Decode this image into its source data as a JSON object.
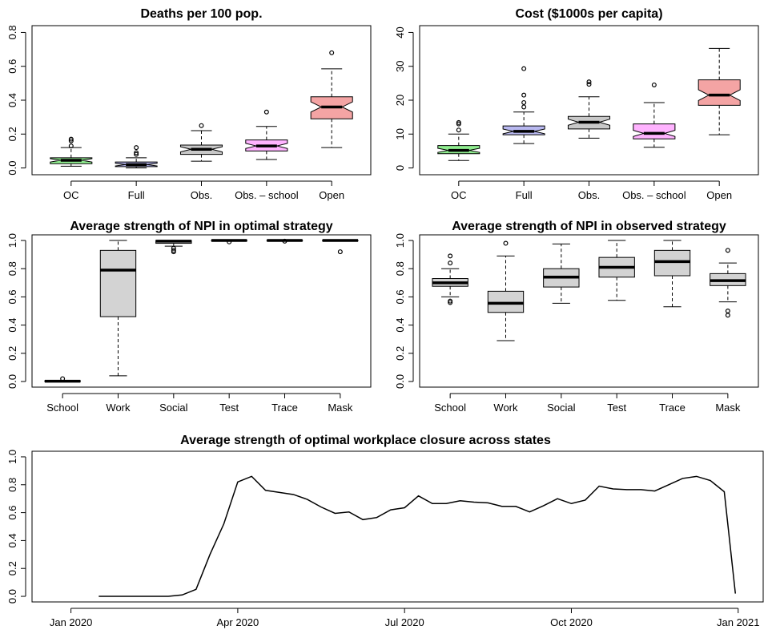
{
  "chart_data": [
    {
      "type": "boxplot",
      "title": "Deaths per 100 pop.",
      "categories": [
        "OC",
        "Full",
        "Obs.",
        "Obs. – school",
        "Open"
      ],
      "ylim": [
        0,
        0.8
      ],
      "yticks": [
        "0.0",
        "0.2",
        "0.4",
        "0.6",
        "0.8"
      ],
      "notched": true,
      "series": [
        {
          "name": "OC",
          "color": "#90ee90",
          "min": 0.01,
          "q1": 0.025,
          "median": 0.045,
          "q3": 0.06,
          "max": 0.12,
          "notch": 0.01,
          "outliers": [
            0.13,
            0.16,
            0.17
          ]
        },
        {
          "name": "Full",
          "color": "#b8b8f0",
          "min": 0.0,
          "q1": 0.008,
          "median": 0.02,
          "q3": 0.035,
          "max": 0.06,
          "notch": 0.008,
          "outliers": [
            0.08,
            0.09,
            0.12
          ]
        },
        {
          "name": "Obs.",
          "color": "#c8c8c8",
          "min": 0.04,
          "q1": 0.08,
          "median": 0.11,
          "q3": 0.135,
          "max": 0.22,
          "notch": 0.015,
          "outliers": [
            0.25
          ]
        },
        {
          "name": "Obs. – school",
          "color": "#ffb3ff",
          "min": 0.05,
          "q1": 0.1,
          "median": 0.13,
          "q3": 0.165,
          "max": 0.245,
          "notch": 0.015,
          "outliers": [
            0.33
          ]
        },
        {
          "name": "Open",
          "color": "#f4a4a4",
          "min": 0.12,
          "q1": 0.29,
          "median": 0.36,
          "q3": 0.42,
          "max": 0.585,
          "notch": 0.03,
          "outliers": [
            0.68
          ]
        }
      ]
    },
    {
      "type": "boxplot",
      "title": "Cost ($1000s per capita)",
      "categories": [
        "OC",
        "Full",
        "Obs.",
        "Obs. – school",
        "Open"
      ],
      "ylim": [
        0,
        40
      ],
      "yticks": [
        "0",
        "10",
        "20",
        "30",
        "40"
      ],
      "notched": true,
      "series": [
        {
          "name": "OC",
          "color": "#90ee90",
          "min": 2.2,
          "q1": 4.2,
          "median": 5.2,
          "q3": 6.6,
          "max": 10.0,
          "notch": 0.6,
          "outliers": [
            11.2,
            13.0,
            13.4
          ]
        },
        {
          "name": "Full",
          "color": "#b8b8f0",
          "min": 7.2,
          "q1": 9.8,
          "median": 10.8,
          "q3": 12.4,
          "max": 16.5,
          "notch": 0.7,
          "outliers": [
            18.0,
            19.3,
            21.5,
            29.3
          ]
        },
        {
          "name": "Obs.",
          "color": "#c8c8c8",
          "min": 8.8,
          "q1": 11.5,
          "median": 13.5,
          "q3": 15.2,
          "max": 21.0,
          "notch": 0.9,
          "outliers": [
            24.7,
            25.4
          ]
        },
        {
          "name": "Obs. – school",
          "color": "#ffb3ff",
          "min": 6.1,
          "q1": 8.6,
          "median": 10.2,
          "q3": 13.0,
          "max": 19.3,
          "notch": 0.9,
          "outliers": [
            24.5
          ]
        },
        {
          "name": "Open",
          "color": "#f4a4a4",
          "min": 9.8,
          "q1": 18.5,
          "median": 21.5,
          "q3": 26.0,
          "max": 35.3,
          "notch": 1.6,
          "outliers": []
        }
      ]
    },
    {
      "type": "boxplot",
      "title": "Average strength of NPI in optimal strategy",
      "categories": [
        "School",
        "Work",
        "Social",
        "Test",
        "Trace",
        "Mask"
      ],
      "ylim": [
        0,
        1
      ],
      "yticks": [
        "0.0",
        "0.2",
        "0.4",
        "0.6",
        "0.8",
        "1.0"
      ],
      "notched": false,
      "series": [
        {
          "name": "School",
          "color": "#d3d3d3",
          "min": 0.0,
          "q1": 0.0,
          "median": 0.002,
          "q3": 0.005,
          "max": 0.005,
          "outliers": [
            0.02
          ]
        },
        {
          "name": "Work",
          "color": "#d3d3d3",
          "min": 0.04,
          "q1": 0.46,
          "median": 0.79,
          "q3": 0.93,
          "max": 1.0,
          "outliers": []
        },
        {
          "name": "Social",
          "color": "#d3d3d3",
          "min": 0.96,
          "q1": 0.98,
          "median": 0.995,
          "q3": 1.0,
          "max": 1.0,
          "outliers": [
            0.93,
            0.92,
            0.945
          ]
        },
        {
          "name": "Test",
          "color": "#d3d3d3",
          "min": 0.995,
          "q1": 0.998,
          "median": 1.0,
          "q3": 1.0,
          "max": 1.0,
          "outliers": [
            0.99
          ]
        },
        {
          "name": "Trace",
          "color": "#d3d3d3",
          "min": 0.998,
          "q1": 0.999,
          "median": 1.0,
          "q3": 1.0,
          "max": 1.0,
          "outliers": [
            0.995
          ]
        },
        {
          "name": "Mask",
          "color": "#d3d3d3",
          "min": 0.995,
          "q1": 0.998,
          "median": 1.0,
          "q3": 1.0,
          "max": 1.0,
          "outliers": [
            0.92
          ]
        }
      ]
    },
    {
      "type": "boxplot",
      "title": "Average strength of NPI in observed strategy",
      "categories": [
        "School",
        "Work",
        "Social",
        "Test",
        "Trace",
        "Mask"
      ],
      "ylim": [
        0,
        1
      ],
      "yticks": [
        "0.0",
        "0.2",
        "0.4",
        "0.6",
        "0.8",
        "1.0"
      ],
      "notched": false,
      "series": [
        {
          "name": "School",
          "color": "#d3d3d3",
          "min": 0.6,
          "q1": 0.675,
          "median": 0.7,
          "q3": 0.73,
          "max": 0.8,
          "outliers": [
            0.56,
            0.57,
            0.84,
            0.89
          ]
        },
        {
          "name": "Work",
          "color": "#d3d3d3",
          "min": 0.29,
          "q1": 0.49,
          "median": 0.555,
          "q3": 0.64,
          "max": 0.89,
          "outliers": [
            0.98
          ]
        },
        {
          "name": "Social",
          "color": "#d3d3d3",
          "min": 0.555,
          "q1": 0.67,
          "median": 0.74,
          "q3": 0.8,
          "max": 0.975,
          "outliers": []
        },
        {
          "name": "Test",
          "color": "#d3d3d3",
          "min": 0.575,
          "q1": 0.74,
          "median": 0.81,
          "q3": 0.88,
          "max": 1.0,
          "outliers": []
        },
        {
          "name": "Trace",
          "color": "#d3d3d3",
          "min": 0.53,
          "q1": 0.75,
          "median": 0.85,
          "q3": 0.93,
          "max": 1.0,
          "outliers": []
        },
        {
          "name": "Mask",
          "color": "#d3d3d3",
          "min": 0.565,
          "q1": 0.68,
          "median": 0.715,
          "q3": 0.765,
          "max": 0.84,
          "outliers": [
            0.47,
            0.5,
            0.93
          ]
        }
      ]
    },
    {
      "type": "line",
      "title": "Average strength of optimal workplace closure across states",
      "x_months": [
        0.5,
        0.75,
        1.0,
        1.25,
        1.5,
        1.75,
        2.0,
        2.25,
        2.5,
        2.75,
        3.0,
        3.25,
        3.5,
        3.75,
        4.0,
        4.25,
        4.5,
        4.75,
        5.0,
        5.25,
        5.5,
        5.75,
        6.0,
        6.25,
        6.5,
        6.75,
        7.0,
        7.25,
        7.5,
        7.75,
        8.0,
        8.25,
        8.5,
        8.75,
        9.0,
        9.25,
        9.5,
        9.75,
        10.0,
        10.25,
        10.5,
        10.75,
        11.0,
        11.25,
        11.5,
        11.75,
        11.95
      ],
      "values": [
        0.0,
        0.0,
        0.0,
        0.0,
        0.0,
        0.0,
        0.01,
        0.05,
        0.3,
        0.52,
        0.82,
        0.86,
        0.76,
        0.745,
        0.73,
        0.695,
        0.64,
        0.595,
        0.605,
        0.55,
        0.565,
        0.62,
        0.635,
        0.72,
        0.665,
        0.665,
        0.685,
        0.675,
        0.67,
        0.645,
        0.645,
        0.605,
        0.65,
        0.7,
        0.665,
        0.69,
        0.79,
        0.77,
        0.765,
        0.765,
        0.755,
        0.8,
        0.845,
        0.86,
        0.83,
        0.75,
        0.02
      ],
      "ylim": [
        0,
        1
      ],
      "yticks": [
        "0.0",
        "0.2",
        "0.4",
        "0.6",
        "0.8",
        "1.0"
      ],
      "xticks": [
        {
          "month": 0,
          "label": "Jan 2020"
        },
        {
          "month": 3,
          "label": "Apr 2020"
        },
        {
          "month": 6,
          "label": "Jul 2020"
        },
        {
          "month": 9,
          "label": "Oct 2020"
        },
        {
          "month": 12,
          "label": "Jan 2021"
        }
      ]
    }
  ]
}
